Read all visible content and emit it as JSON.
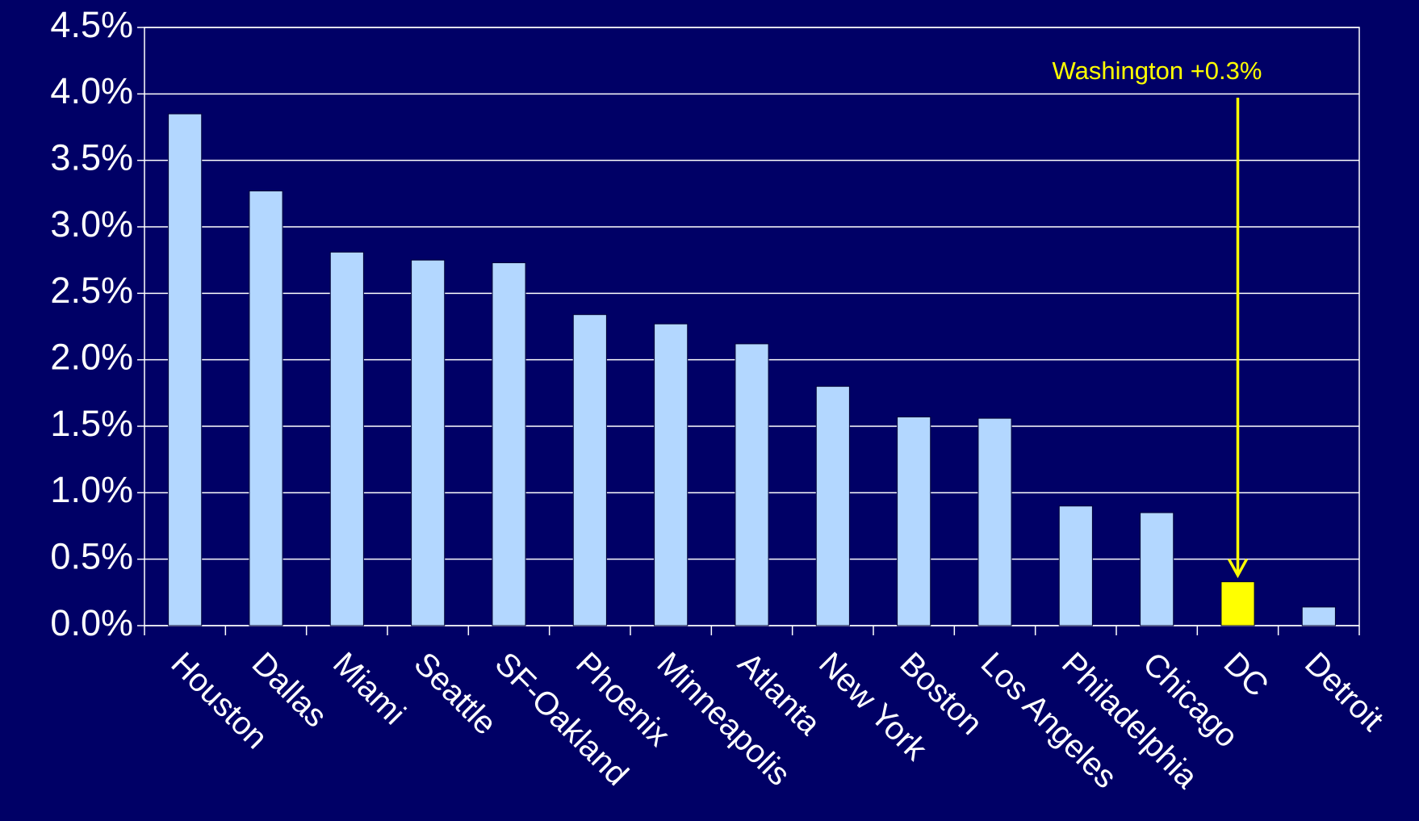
{
  "chart_data": {
    "type": "bar",
    "categories": [
      "Houston",
      "Dallas",
      "Miami",
      "Seattle",
      "SF-Oakland",
      "Phoenix",
      "Minneapolis",
      "Atlanta",
      "New York",
      "Boston",
      "Los Angeles",
      "Philadelphia",
      "Chicago",
      "DC",
      "Detroit"
    ],
    "values": [
      3.85,
      3.27,
      2.81,
      2.75,
      2.73,
      2.34,
      2.27,
      2.12,
      1.8,
      1.57,
      1.56,
      0.9,
      0.85,
      0.33,
      0.14
    ],
    "colors": [
      "#b3d7ff",
      "#b3d7ff",
      "#b3d7ff",
      "#b3d7ff",
      "#b3d7ff",
      "#b3d7ff",
      "#b3d7ff",
      "#b3d7ff",
      "#b3d7ff",
      "#b3d7ff",
      "#b3d7ff",
      "#b3d7ff",
      "#b3d7ff",
      "#ffff00",
      "#b3d7ff"
    ],
    "ylim": [
      0,
      4.5
    ],
    "yticks": [
      {
        "value": 0,
        "label": "0.0%"
      },
      {
        "value": 0.5,
        "label": "0.5%"
      },
      {
        "value": 1,
        "label": "1.0%"
      },
      {
        "value": 1.5,
        "label": "1.5%"
      },
      {
        "value": 2,
        "label": "2.0%"
      },
      {
        "value": 2.5,
        "label": "2.5%"
      },
      {
        "value": 3,
        "label": "3.0%"
      },
      {
        "value": 3.5,
        "label": "3.5%"
      },
      {
        "value": 4,
        "label": "4.0%"
      },
      {
        "value": 4.5,
        "label": "4.5%"
      }
    ],
    "grid": true,
    "annotations": [
      {
        "text": "Washington +0.3%",
        "category": "DC",
        "color": "#ffff00"
      }
    ]
  }
}
